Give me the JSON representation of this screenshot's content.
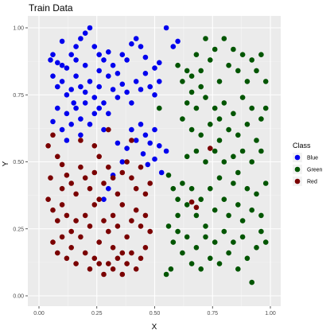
{
  "chart_data": {
    "type": "scatter",
    "title": "Train Data",
    "xlabel": "X",
    "ylabel": "Y",
    "xlim": [
      0,
      1
    ],
    "ylim": [
      0,
      1
    ],
    "x_ticks": [
      "0.00",
      "0.25",
      "0.50",
      "0.75",
      "1.00"
    ],
    "y_ticks": [
      "0.00",
      "0.25",
      "0.50",
      "0.75",
      "1.00"
    ],
    "tick_values": [
      0,
      0.25,
      0.5,
      0.75,
      1
    ],
    "grid": true,
    "legend": {
      "title": "Class",
      "position": "right"
    },
    "series": [
      {
        "name": "Blue",
        "color": "#0000ee",
        "points": [
          [
            0.05,
            0.88
          ],
          [
            0.06,
            0.9
          ],
          [
            0.08,
            0.87
          ],
          [
            0.1,
            0.95
          ],
          [
            0.12,
            0.85
          ],
          [
            0.14,
            0.9
          ],
          [
            0.16,
            0.88
          ],
          [
            0.18,
            0.96
          ],
          [
            0.2,
            0.98
          ],
          [
            0.22,
            1.0
          ],
          [
            0.24,
            0.93
          ],
          [
            0.26,
            0.9
          ],
          [
            0.28,
            0.88
          ],
          [
            0.3,
            0.91
          ],
          [
            0.32,
            0.86
          ],
          [
            0.36,
            0.9
          ],
          [
            0.4,
            0.94
          ],
          [
            0.42,
            0.96
          ],
          [
            0.44,
            0.93
          ],
          [
            0.46,
            0.89
          ],
          [
            0.5,
            0.85
          ],
          [
            0.52,
            0.87
          ],
          [
            0.55,
            1.0
          ],
          [
            0.58,
            0.93
          ],
          [
            0.6,
            0.95
          ],
          [
            0.06,
            0.82
          ],
          [
            0.08,
            0.78
          ],
          [
            0.1,
            0.8
          ],
          [
            0.12,
            0.75
          ],
          [
            0.14,
            0.77
          ],
          [
            0.15,
            0.72
          ],
          [
            0.16,
            0.82
          ],
          [
            0.18,
            0.78
          ],
          [
            0.2,
            0.76
          ],
          [
            0.22,
            0.8
          ],
          [
            0.24,
            0.74
          ],
          [
            0.26,
            0.78
          ],
          [
            0.28,
            0.72
          ],
          [
            0.3,
            0.82
          ],
          [
            0.32,
            0.77
          ],
          [
            0.34,
            0.74
          ],
          [
            0.36,
            0.79
          ],
          [
            0.38,
            0.76
          ],
          [
            0.4,
            0.72
          ],
          [
            0.42,
            0.8
          ],
          [
            0.44,
            0.77
          ],
          [
            0.46,
            0.83
          ],
          [
            0.48,
            0.78
          ],
          [
            0.5,
            0.75
          ],
          [
            0.52,
            0.8
          ],
          [
            0.06,
            0.65
          ],
          [
            0.08,
            0.7
          ],
          [
            0.1,
            0.62
          ],
          [
            0.12,
            0.68
          ],
          [
            0.14,
            0.64
          ],
          [
            0.16,
            0.7
          ],
          [
            0.18,
            0.66
          ],
          [
            0.2,
            0.72
          ],
          [
            0.22,
            0.64
          ],
          [
            0.24,
            0.68
          ],
          [
            0.26,
            0.7
          ],
          [
            0.28,
            0.62
          ],
          [
            0.3,
            0.68
          ],
          [
            0.4,
            0.62
          ],
          [
            0.42,
            0.58
          ],
          [
            0.44,
            0.64
          ],
          [
            0.46,
            0.6
          ],
          [
            0.48,
            0.57
          ],
          [
            0.5,
            0.62
          ],
          [
            0.52,
            0.56
          ],
          [
            0.45,
            0.53
          ],
          [
            0.47,
            0.49
          ],
          [
            0.5,
            0.51
          ],
          [
            0.53,
            0.46
          ],
          [
            0.55,
            0.54
          ],
          [
            0.12,
            0.58
          ],
          [
            0.18,
            0.6
          ],
          [
            0.32,
            0.45
          ],
          [
            0.36,
            0.5
          ],
          [
            0.38,
            0.55
          ],
          [
            0.3,
            0.4
          ],
          [
            0.28,
            0.36
          ],
          [
            0.34,
            0.57
          ],
          [
            0.2,
            0.86
          ],
          [
            0.26,
            0.84
          ],
          [
            0.34,
            0.83
          ],
          [
            0.38,
            0.88
          ],
          [
            0.1,
            0.86
          ],
          [
            0.16,
            0.93
          ]
        ]
      },
      {
        "name": "Green",
        "color": "#005500",
        "points": [
          [
            0.6,
            0.86
          ],
          [
            0.62,
            0.8
          ],
          [
            0.64,
            0.84
          ],
          [
            0.66,
            0.76
          ],
          [
            0.68,
            0.9
          ],
          [
            0.7,
            0.84
          ],
          [
            0.72,
            0.96
          ],
          [
            0.74,
            0.88
          ],
          [
            0.76,
            0.92
          ],
          [
            0.78,
            0.8
          ],
          [
            0.8,
            0.96
          ],
          [
            0.82,
            0.86
          ],
          [
            0.84,
            0.92
          ],
          [
            0.86,
            0.84
          ],
          [
            0.88,
            0.9
          ],
          [
            0.9,
            0.8
          ],
          [
            0.92,
            0.88
          ],
          [
            0.94,
            0.84
          ],
          [
            0.96,
            0.9
          ],
          [
            0.98,
            0.8
          ],
          [
            0.62,
            0.66
          ],
          [
            0.64,
            0.72
          ],
          [
            0.66,
            0.62
          ],
          [
            0.68,
            0.7
          ],
          [
            0.7,
            0.6
          ],
          [
            0.72,
            0.74
          ],
          [
            0.74,
            0.64
          ],
          [
            0.76,
            0.7
          ],
          [
            0.78,
            0.58
          ],
          [
            0.8,
            0.72
          ],
          [
            0.82,
            0.62
          ],
          [
            0.84,
            0.68
          ],
          [
            0.86,
            0.6
          ],
          [
            0.88,
            0.74
          ],
          [
            0.9,
            0.64
          ],
          [
            0.92,
            0.7
          ],
          [
            0.94,
            0.58
          ],
          [
            0.96,
            0.66
          ],
          [
            0.98,
            0.7
          ],
          [
            0.64,
            0.52
          ],
          [
            0.68,
            0.54
          ],
          [
            0.72,
            0.5
          ],
          [
            0.76,
            0.54
          ],
          [
            0.8,
            0.5
          ],
          [
            0.84,
            0.52
          ],
          [
            0.88,
            0.54
          ],
          [
            0.92,
            0.5
          ],
          [
            0.96,
            0.54
          ],
          [
            0.56,
            0.45
          ],
          [
            0.58,
            0.4
          ],
          [
            0.6,
            0.36
          ],
          [
            0.62,
            0.42
          ],
          [
            0.64,
            0.34
          ],
          [
            0.66,
            0.4
          ],
          [
            0.68,
            0.3
          ],
          [
            0.7,
            0.36
          ],
          [
            0.72,
            0.26
          ],
          [
            0.74,
            0.4
          ],
          [
            0.76,
            0.32
          ],
          [
            0.78,
            0.44
          ],
          [
            0.8,
            0.36
          ],
          [
            0.82,
            0.3
          ],
          [
            0.84,
            0.42
          ],
          [
            0.86,
            0.34
          ],
          [
            0.88,
            0.28
          ],
          [
            0.9,
            0.4
          ],
          [
            0.92,
            0.32
          ],
          [
            0.94,
            0.38
          ],
          [
            0.96,
            0.3
          ],
          [
            0.98,
            0.42
          ],
          [
            0.56,
            0.26
          ],
          [
            0.58,
            0.2
          ],
          [
            0.6,
            0.24
          ],
          [
            0.62,
            0.16
          ],
          [
            0.64,
            0.22
          ],
          [
            0.66,
            0.12
          ],
          [
            0.68,
            0.18
          ],
          [
            0.7,
            0.1
          ],
          [
            0.72,
            0.22
          ],
          [
            0.74,
            0.14
          ],
          [
            0.76,
            0.2
          ],
          [
            0.78,
            0.12
          ],
          [
            0.8,
            0.24
          ],
          [
            0.82,
            0.16
          ],
          [
            0.84,
            0.2
          ],
          [
            0.86,
            0.1
          ],
          [
            0.88,
            0.22
          ],
          [
            0.9,
            0.14
          ],
          [
            0.92,
            0.05
          ],
          [
            0.94,
            0.18
          ],
          [
            0.96,
            0.24
          ],
          [
            0.98,
            0.2
          ],
          [
            0.55,
            0.08
          ],
          [
            0.57,
            0.1
          ],
          [
            0.6,
            0.3
          ],
          [
            0.86,
            0.46
          ],
          [
            0.52,
            0.7
          ],
          [
            0.66,
            0.82
          ],
          [
            0.7,
            0.78
          ],
          [
            0.78,
            0.66
          ]
        ]
      },
      {
        "name": "Red",
        "color": "#7a0000",
        "points": [
          [
            0.04,
            0.56
          ],
          [
            0.06,
            0.6
          ],
          [
            0.08,
            0.52
          ],
          [
            0.1,
            0.49
          ],
          [
            0.12,
            0.45
          ],
          [
            0.14,
            0.42
          ],
          [
            0.16,
            0.38
          ],
          [
            0.18,
            0.48
          ],
          [
            0.2,
            0.44
          ],
          [
            0.22,
            0.4
          ],
          [
            0.24,
            0.46
          ],
          [
            0.26,
            0.52
          ],
          [
            0.28,
            0.42
          ],
          [
            0.3,
            0.48
          ],
          [
            0.32,
            0.44
          ],
          [
            0.34,
            0.38
          ],
          [
            0.36,
            0.46
          ],
          [
            0.38,
            0.5
          ],
          [
            0.4,
            0.44
          ],
          [
            0.42,
            0.4
          ],
          [
            0.44,
            0.48
          ],
          [
            0.46,
            0.38
          ],
          [
            0.48,
            0.42
          ],
          [
            0.04,
            0.36
          ],
          [
            0.06,
            0.32
          ],
          [
            0.08,
            0.28
          ],
          [
            0.1,
            0.34
          ],
          [
            0.12,
            0.3
          ],
          [
            0.14,
            0.24
          ],
          [
            0.16,
            0.28
          ],
          [
            0.18,
            0.22
          ],
          [
            0.2,
            0.3
          ],
          [
            0.22,
            0.26
          ],
          [
            0.24,
            0.34
          ],
          [
            0.26,
            0.2
          ],
          [
            0.28,
            0.28
          ],
          [
            0.3,
            0.24
          ],
          [
            0.32,
            0.3
          ],
          [
            0.34,
            0.26
          ],
          [
            0.36,
            0.34
          ],
          [
            0.38,
            0.22
          ],
          [
            0.4,
            0.28
          ],
          [
            0.42,
            0.32
          ],
          [
            0.44,
            0.26
          ],
          [
            0.46,
            0.3
          ],
          [
            0.48,
            0.24
          ],
          [
            0.06,
            0.2
          ],
          [
            0.08,
            0.16
          ],
          [
            0.1,
            0.22
          ],
          [
            0.12,
            0.14
          ],
          [
            0.14,
            0.18
          ],
          [
            0.16,
            0.12
          ],
          [
            0.2,
            0.16
          ],
          [
            0.22,
            0.1
          ],
          [
            0.24,
            0.14
          ],
          [
            0.26,
            0.12
          ],
          [
            0.28,
            0.08
          ],
          [
            0.3,
            0.12
          ],
          [
            0.32,
            0.1
          ],
          [
            0.34,
            0.14
          ],
          [
            0.36,
            0.08
          ],
          [
            0.38,
            0.12
          ],
          [
            0.4,
            0.16
          ],
          [
            0.42,
            0.1
          ],
          [
            0.44,
            0.14
          ],
          [
            0.46,
            0.18
          ],
          [
            0.32,
            0.18
          ],
          [
            0.26,
            0.36
          ],
          [
            0.18,
            0.58
          ],
          [
            0.24,
            0.56
          ],
          [
            0.3,
            0.62
          ],
          [
            0.4,
            0.58
          ],
          [
            0.74,
            0.55
          ],
          [
            0.66,
            0.35
          ],
          [
            0.68,
            0.33
          ],
          [
            0.1,
            0.4
          ],
          [
            0.05,
            0.44
          ],
          [
            0.36,
            0.16
          ]
        ]
      }
    ]
  }
}
